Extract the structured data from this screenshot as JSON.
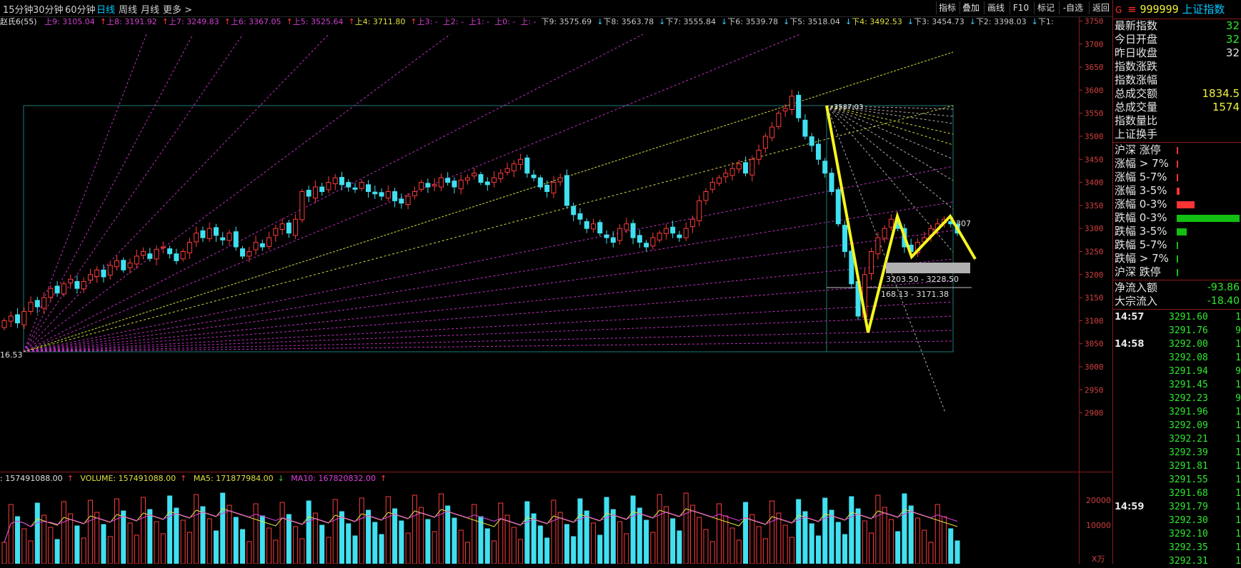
{
  "toolbar": {
    "periods": [
      {
        "label": "15分钟",
        "active": false
      },
      {
        "label": "30分钟",
        "active": false
      },
      {
        "label": "60分钟",
        "active": false
      },
      {
        "label": "日线",
        "active": true
      },
      {
        "label": "周线",
        "active": false
      },
      {
        "label": "月线",
        "active": false
      },
      {
        "label": "更多 >",
        "active": false
      }
    ],
    "right_buttons": [
      "指标",
      "叠加",
      "画线",
      "F10",
      "标记",
      "-自选",
      "返回"
    ]
  },
  "indicator_label": "赵氏6(55)",
  "fib_levels": [
    {
      "text": "上9: 3105.04",
      "arrow": "↑",
      "color": "#d040d0"
    },
    {
      "text": "上8: 3191.92",
      "arrow": "↑",
      "color": "#d040d0"
    },
    {
      "text": "上7: 3249.83",
      "arrow": "↑",
      "color": "#d040d0"
    },
    {
      "text": "上6: 3367.05",
      "arrow": "↑",
      "color": "#d040d0"
    },
    {
      "text": "上5: 3525.64",
      "arrow": "↑",
      "color": "#d040d0"
    },
    {
      "text": "上4: 3711.80",
      "arrow": "↑",
      "color": "#e0e040"
    },
    {
      "text": "上3: -",
      "arrow": "",
      "color": "#d040d0"
    },
    {
      "text": "上2: -",
      "arrow": "",
      "color": "#d040d0"
    },
    {
      "text": "上1: -",
      "arrow": "",
      "color": "#d040d0"
    },
    {
      "text": "上0: -",
      "arrow": "",
      "color": "#d040d0"
    },
    {
      "text": "上: -",
      "arrow": "",
      "color": "#d040d0"
    },
    {
      "text": "下9: 3575.69",
      "arrow": "↓",
      "color": "#c8c8c8"
    },
    {
      "text": "下8: 3563.78",
      "arrow": "↓",
      "color": "#c8c8c8"
    },
    {
      "text": "下7: 3555.84",
      "arrow": "↓",
      "color": "#c8c8c8"
    },
    {
      "text": "下6: 3539.78",
      "arrow": "↓",
      "color": "#c8c8c8"
    },
    {
      "text": "下5: 3518.04",
      "arrow": "↓",
      "color": "#c8c8c8"
    },
    {
      "text": "下4: 3492.53",
      "arrow": "↓",
      "color": "#e0e040"
    },
    {
      "text": "下3: 3454.73",
      "arrow": "↓",
      "color": "#c8c8c8"
    },
    {
      "text": "下2: 3398.03",
      "arrow": "↓",
      "color": "#c8c8c8"
    },
    {
      "text": "下1:",
      "arrow": "",
      "color": "#c8c8c8"
    }
  ],
  "annotations": {
    "low_value": "16.53",
    "top_value": "3587.03",
    "zone1": "3203.50 - 3228.50",
    "zone2": "168.13 - 3171.38",
    "right_value": "307"
  },
  "volume_header": {
    "left": ": 157491088.00",
    "volume": "VOLUME: 157491088.00",
    "ma5": "MA5: 171877984.00",
    "ma10": "MA10: 167820832.00"
  },
  "volume_axis": {
    "ticks": [
      "20000",
      "10000"
    ],
    "unit": "X万"
  },
  "right_panel": {
    "code_prefix": "G",
    "code": "999999",
    "name": "上证指数",
    "stats": [
      {
        "label": "最新指数",
        "value": "32",
        "color": "#2ee82e"
      },
      {
        "label": "今日开盘",
        "value": "32",
        "color": "#2ee82e"
      },
      {
        "label": "昨日收盘",
        "value": "32",
        "color": "#e6e6e6"
      },
      {
        "label": "指数涨跌",
        "value": "",
        "color": "#2ee82e"
      },
      {
        "label": "指数涨幅",
        "value": "",
        "color": "#2ee82e"
      },
      {
        "label": "总成交额",
        "value": "1834.5",
        "color": "#f0f040"
      },
      {
        "label": "总成交量",
        "value": "1574",
        "color": "#f0f040"
      },
      {
        "label": "指数量比",
        "value": "",
        "color": "#e6e6e6"
      },
      {
        "label": "上证换手",
        "value": "",
        "color": "#e6e6e6"
      }
    ],
    "breadth": [
      {
        "label": "沪深 涨停",
        "bar": 0.02,
        "color": "#ff3333"
      },
      {
        "label": "涨幅 > 7%",
        "bar": 0.02,
        "color": "#ff3333"
      },
      {
        "label": "涨幅 5-7%",
        "bar": 0.02,
        "color": "#ff3333"
      },
      {
        "label": "涨幅 3-5%",
        "bar": 0.04,
        "color": "#ff3333"
      },
      {
        "label": "涨幅 0-3%",
        "bar": 0.28,
        "color": "#ff3333"
      },
      {
        "label": "跌幅 0-3%",
        "bar": 1.0,
        "color": "#11c011"
      },
      {
        "label": "跌幅 3-5%",
        "bar": 0.16,
        "color": "#11c011"
      },
      {
        "label": "跌幅 5-7%",
        "bar": 0.02,
        "color": "#11c011"
      },
      {
        "label": "跌幅 > 7%",
        "bar": 0.02,
        "color": "#11c011"
      },
      {
        "label": "沪深 跌停",
        "bar": 0.02,
        "color": "#11c011"
      }
    ],
    "flows": [
      {
        "label": "净流入额",
        "value": "-93.86",
        "color": "#2ee82e"
      },
      {
        "label": "大宗流入",
        "value": "-18.40",
        "color": "#2ee82e"
      }
    ],
    "ticks": [
      {
        "time": "14:57",
        "price": "3291.60",
        "vol": "1"
      },
      {
        "time": "",
        "price": "3291.76",
        "vol": "9"
      },
      {
        "time": "14:58",
        "price": "3292.00",
        "vol": "1"
      },
      {
        "time": "",
        "price": "3292.08",
        "vol": "1"
      },
      {
        "time": "",
        "price": "3291.94",
        "vol": "9"
      },
      {
        "time": "",
        "price": "3291.45",
        "vol": "1"
      },
      {
        "time": "",
        "price": "3292.23",
        "vol": "9"
      },
      {
        "time": "",
        "price": "3291.96",
        "vol": "1"
      },
      {
        "time": "",
        "price": "3292.09",
        "vol": "1"
      },
      {
        "time": "",
        "price": "3292.21",
        "vol": "1"
      },
      {
        "time": "",
        "price": "3292.39",
        "vol": "1"
      },
      {
        "time": "",
        "price": "3291.81",
        "vol": "1"
      },
      {
        "time": "",
        "price": "3291.55",
        "vol": "1"
      },
      {
        "time": "",
        "price": "3291.68",
        "vol": "1"
      },
      {
        "time": "14:59",
        "price": "3291.79",
        "vol": "1"
      },
      {
        "time": "",
        "price": "3292.30",
        "vol": "1"
      },
      {
        "time": "",
        "price": "3292.10",
        "vol": "1"
      },
      {
        "time": "",
        "price": "3292.35",
        "vol": "1"
      },
      {
        "time": "",
        "price": "3292.31",
        "vol": "1"
      }
    ]
  },
  "price_axis": {
    "ticks": [
      "3750",
      "3700",
      "3650",
      "3600",
      "3550",
      "3500",
      "3450",
      "3400",
      "3350",
      "3300",
      "3250",
      "3200",
      "3150",
      "3100",
      "3050",
      "3000",
      "2950",
      "2900"
    ]
  },
  "chart_data": {
    "type": "candlestick",
    "ylim": [
      2870,
      3760
    ],
    "closes": [
      3100,
      3110,
      3095,
      3120,
      3140,
      3130,
      3150,
      3170,
      3160,
      3180,
      3190,
      3170,
      3185,
      3200,
      3210,
      3195,
      3220,
      3230,
      3210,
      3225,
      3240,
      3250,
      3235,
      3255,
      3260,
      3245,
      3230,
      3250,
      3270,
      3290,
      3280,
      3300,
      3285,
      3275,
      3290,
      3260,
      3240,
      3250,
      3270,
      3260,
      3280,
      3300,
      3310,
      3290,
      3320,
      3380,
      3370,
      3390,
      3380,
      3400,
      3410,
      3395,
      3390,
      3385,
      3400,
      3380,
      3375,
      3370,
      3380,
      3360,
      3355,
      3370,
      3380,
      3400,
      3390,
      3395,
      3410,
      3400,
      3390,
      3405,
      3410,
      3420,
      3400,
      3395,
      3410,
      3420,
      3430,
      3440,
      3450,
      3420,
      3410,
      3390,
      3380,
      3400,
      3410,
      3350,
      3330,
      3320,
      3300,
      3310,
      3290,
      3280,
      3270,
      3300,
      3310,
      3280,
      3270,
      3260,
      3280,
      3290,
      3300,
      3290,
      3280,
      3300,
      3320,
      3360,
      3380,
      3400,
      3410,
      3420,
      3430,
      3440,
      3420,
      3450,
      3470,
      3500,
      3520,
      3550,
      3560,
      3587,
      3540,
      3500,
      3480,
      3450,
      3420,
      3380,
      3310,
      3250,
      3180,
      3110,
      3200,
      3250,
      3280,
      3300,
      3320,
      3300,
      3260,
      3250,
      3270,
      3280,
      3300,
      3310,
      3320,
      3310,
      3290
    ]
  }
}
